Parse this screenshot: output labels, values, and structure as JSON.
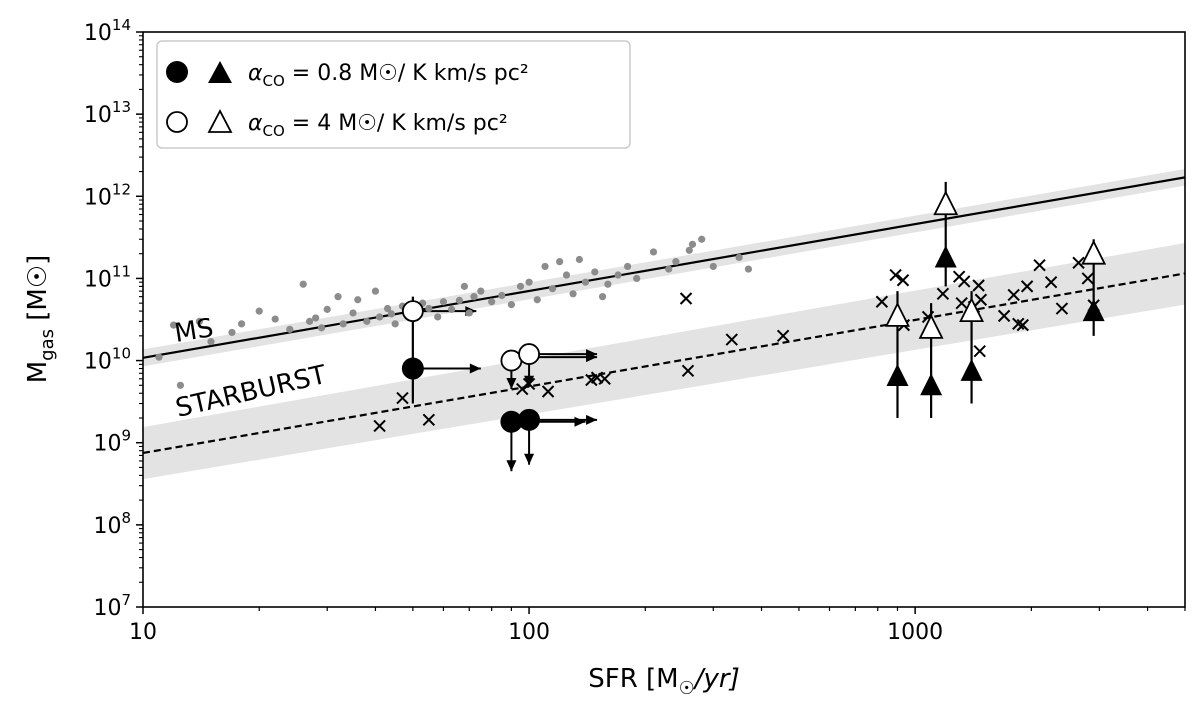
{
  "chart_data": {
    "type": "scatter",
    "x_scale": "log",
    "y_scale": "log",
    "xlim": [
      10,
      5000
    ],
    "ylim": [
      10000000,
      100000000000000
    ],
    "x_ticks": [
      {
        "value": 10,
        "label": "10"
      },
      {
        "value": 100,
        "label": "100"
      },
      {
        "value": 1000,
        "label": "1000"
      }
    ],
    "y_ticks": [
      {
        "value": 10000000,
        "base": "10",
        "exp": "7"
      },
      {
        "value": 100000000,
        "base": "10",
        "exp": "8"
      },
      {
        "value": 1000000000,
        "base": "10",
        "exp": "9"
      },
      {
        "value": 10000000000,
        "base": "10",
        "exp": "10"
      },
      {
        "value": 100000000000,
        "base": "10",
        "exp": "11"
      },
      {
        "value": 1000000000000,
        "base": "10",
        "exp": "12"
      },
      {
        "value": 10000000000000,
        "base": "10",
        "exp": "13"
      },
      {
        "value": 100000000000000,
        "base": "10",
        "exp": "14"
      }
    ],
    "xlabel": {
      "pre": "SFR [M",
      "sub": "☉",
      "post": "/yr]"
    },
    "ylabel": {
      "pre": "M",
      "sub": "gas",
      "post": " [M☉]"
    },
    "legend": {
      "placement": "top-left",
      "entries": [
        {
          "alpha": "α",
          "alpha_sub": "CO",
          "value_text": " = 0.8 M☉/ K km/s pc²",
          "filled": true
        },
        {
          "alpha": "α",
          "alpha_sub": "CO",
          "value_text": " = 4 M☉/ K km/s pc²",
          "filled": false
        }
      ]
    },
    "relations": [
      {
        "label": "MS",
        "style": "solid",
        "x": [
          10,
          5000
        ],
        "y": [
          10800000000,
          1700000000000
        ],
        "band_y_low": [
          8500000000,
          1350000000000
        ],
        "band_y_high": [
          13700000000,
          2150000000000
        ]
      },
      {
        "label": "STARBURST",
        "style": "dashed",
        "x": [
          10,
          5000
        ],
        "y": [
          750000000,
          115000000000
        ],
        "band_y_low": [
          360000000,
          48000000000
        ],
        "band_y_high": [
          1550000000,
          270000000000
        ]
      }
    ],
    "series": [
      {
        "marker": "gray-dot",
        "points": [
          [
            11,
            11000000000
          ],
          [
            12,
            27000000000
          ],
          [
            12.5,
            5000000000
          ],
          [
            14,
            30000000000
          ],
          [
            15,
            17000000000
          ],
          [
            17,
            22000000000
          ],
          [
            18,
            28000000000
          ],
          [
            20,
            40000000000
          ],
          [
            22,
            32000000000
          ],
          [
            24,
            24000000000
          ],
          [
            26,
            85000000000
          ],
          [
            27,
            30000000000
          ],
          [
            28,
            33000000000
          ],
          [
            29,
            25000000000
          ],
          [
            30,
            42000000000
          ],
          [
            32,
            60000000000
          ],
          [
            33,
            28000000000
          ],
          [
            35,
            38000000000
          ],
          [
            36,
            55000000000
          ],
          [
            38,
            30000000000
          ],
          [
            40,
            70000000000
          ],
          [
            41,
            34000000000
          ],
          [
            43,
            43000000000
          ],
          [
            44,
            37000000000
          ],
          [
            45,
            28000000000
          ],
          [
            47,
            46000000000
          ],
          [
            50,
            39000000000
          ],
          [
            53,
            50000000000
          ],
          [
            55,
            43000000000
          ],
          [
            58,
            34000000000
          ],
          [
            60,
            52000000000
          ],
          [
            63,
            42000000000
          ],
          [
            66,
            54000000000
          ],
          [
            68,
            80000000000
          ],
          [
            70,
            38000000000
          ],
          [
            72,
            60000000000
          ],
          [
            75,
            70000000000
          ],
          [
            80,
            52000000000
          ],
          [
            85,
            62000000000
          ],
          [
            90,
            48000000000
          ],
          [
            95,
            80000000000
          ],
          [
            100,
            90000000000
          ],
          [
            105,
            55000000000
          ],
          [
            110,
            140000000000
          ],
          [
            115,
            75000000000
          ],
          [
            120,
            160000000000
          ],
          [
            125,
            110000000000
          ],
          [
            130,
            65000000000
          ],
          [
            135,
            170000000000
          ],
          [
            140,
            90000000000
          ],
          [
            148,
            120000000000
          ],
          [
            155,
            60000000000
          ],
          [
            160,
            85000000000
          ],
          [
            170,
            110000000000
          ],
          [
            180,
            140000000000
          ],
          [
            190,
            100000000000
          ],
          [
            210,
            210000000000
          ],
          [
            230,
            130000000000
          ],
          [
            240,
            160000000000
          ],
          [
            260,
            220000000000
          ],
          [
            265,
            260000000000
          ],
          [
            280,
            300000000000
          ],
          [
            300,
            140000000000
          ],
          [
            350,
            180000000000
          ],
          [
            370,
            130000000000
          ]
        ]
      },
      {
        "marker": "x",
        "points": [
          [
            41,
            1600000000
          ],
          [
            47,
            3500000000
          ],
          [
            55,
            1900000000
          ],
          [
            96,
            4500000000
          ],
          [
            100,
            5200000000
          ],
          [
            112,
            4200000000
          ],
          [
            145,
            5800000000
          ],
          [
            150,
            6200000000
          ],
          [
            157,
            6000000000
          ],
          [
            255,
            57000000000
          ],
          [
            258,
            7500000000
          ],
          [
            335,
            18000000000
          ],
          [
            455,
            20000000000
          ],
          [
            820,
            52000000000
          ],
          [
            890,
            110000000000
          ],
          [
            930,
            95000000000
          ],
          [
            935,
            27000000000
          ],
          [
            1080,
            34000000000
          ],
          [
            1180,
            65000000000
          ],
          [
            1300,
            105000000000
          ],
          [
            1320,
            50000000000
          ],
          [
            1340,
            92000000000
          ],
          [
            1420,
            45000000000
          ],
          [
            1460,
            82000000000
          ],
          [
            1470,
            13000000000
          ],
          [
            1480,
            55000000000
          ],
          [
            1700,
            35000000000
          ],
          [
            1800,
            63000000000
          ],
          [
            1850,
            28000000000
          ],
          [
            1900,
            27000000000
          ],
          [
            1950,
            80000000000
          ],
          [
            2100,
            145000000000
          ],
          [
            2250,
            90000000000
          ],
          [
            2400,
            43000000000
          ],
          [
            2650,
            155000000000
          ],
          [
            2800,
            100000000000
          ],
          [
            2900,
            47000000000
          ]
        ]
      },
      {
        "marker": "filled-circle",
        "points": [
          [
            50,
            8000000000
          ],
          [
            90,
            1800000000
          ],
          [
            100,
            1900000000
          ]
        ]
      },
      {
        "marker": "open-circle",
        "points": [
          [
            50,
            40000000000
          ],
          [
            90,
            10000000000
          ],
          [
            100,
            12000000000
          ]
        ]
      },
      {
        "marker": "filled-triangle",
        "points": [
          [
            900,
            6500000000
          ],
          [
            1100,
            5000000000
          ],
          [
            1200,
            180000000000
          ],
          [
            1400,
            7500000000
          ],
          [
            2900,
            40000000000
          ]
        ]
      },
      {
        "marker": "open-triangle",
        "points": [
          [
            900,
            35000000000
          ],
          [
            1100,
            25000000000
          ],
          [
            1200,
            800000000000
          ],
          [
            1400,
            40000000000
          ],
          [
            2900,
            200000000000
          ]
        ]
      }
    ],
    "error_bars": [
      {
        "x": 50,
        "y_low": 3000000000,
        "y_high": 60000000000
      },
      {
        "x": 900,
        "y_low": 2000000000,
        "y_high": 70000000000
      },
      {
        "x": 1100,
        "y_low": 2000000000,
        "y_high": 50000000000
      },
      {
        "x": 1200,
        "y_low": 80000000000,
        "y_high": 1500000000000
      },
      {
        "x": 1400,
        "y_low": 3000000000,
        "y_high": 70000000000
      },
      {
        "x": 2900,
        "y_low": 20000000000,
        "y_high": 300000000000
      }
    ],
    "limit_arrows": [
      {
        "x": 50,
        "y": 8000000000,
        "direction": "right",
        "to": 75
      },
      {
        "x": 50,
        "y": 40000000000,
        "direction": "right",
        "to": 73
      },
      {
        "x": 90,
        "y": 10000000000,
        "direction": "down",
        "to": 4500000000
      },
      {
        "x": 100,
        "y": 12000000000,
        "direction": "down",
        "to": 4800000000
      },
      {
        "x": 90,
        "y": 1800000000,
        "direction": "down",
        "to": 450000000
      },
      {
        "x": 100,
        "y": 1900000000,
        "direction": "down",
        "to": 540000000
      },
      {
        "x": 100,
        "y": 12000000000,
        "direction": "right",
        "to": 150
      },
      {
        "x": 100,
        "y": 11000000000,
        "direction": "right",
        "to": 150
      },
      {
        "x": 90,
        "y": 1800000000,
        "direction": "right",
        "to": 140
      },
      {
        "x": 100,
        "y": 1900000000,
        "direction": "right",
        "to": 150
      }
    ],
    "grid": false
  }
}
